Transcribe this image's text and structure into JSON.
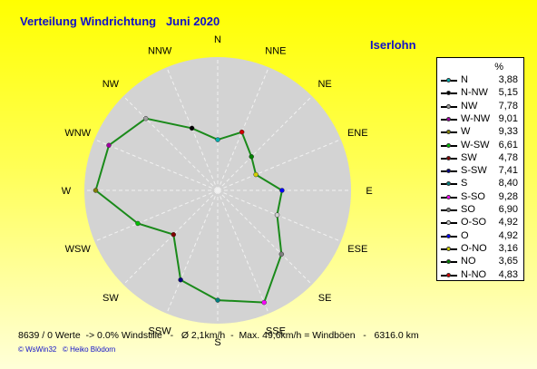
{
  "title": "Verteilung Windrichtung   Juni 2020",
  "location": "Iserlohn",
  "legend_unit": "%",
  "stats": "8639 / 0 Werte  -> 0.0% Windstille   -   Ø 2,1km/h  -  Max. 49,6km/h = Windböen   -   6316.0 km",
  "copyright": "© WsWin32   © Heiko Blödorn",
  "colors": {
    "line": "#1a8a1a",
    "disc": "#d3d3d3",
    "title": "#1010c8"
  },
  "chart_data": {
    "type": "radar",
    "directions": [
      "N",
      "NNE",
      "NE",
      "ENE",
      "E",
      "ESE",
      "SE",
      "SSE",
      "S",
      "SSW",
      "SW",
      "WSW",
      "W",
      "WNW",
      "NW",
      "NNW"
    ],
    "rmax": 9.33,
    "legend": [
      {
        "label": "N",
        "value": 3.88,
        "color": "#00b0b0"
      },
      {
        "label": "N-NW",
        "value": 5.15,
        "color": "#000000"
      },
      {
        "label": "NW",
        "value": 7.78,
        "color": "#a0a0a0"
      },
      {
        "label": "W-NW",
        "value": 9.01,
        "color": "#a000a0"
      },
      {
        "label": "W",
        "value": 9.33,
        "color": "#808000"
      },
      {
        "label": "W-SW",
        "value": 6.61,
        "color": "#00c000"
      },
      {
        "label": "SW",
        "value": 4.78,
        "color": "#800000"
      },
      {
        "label": "S-SW",
        "value": 7.41,
        "color": "#000080"
      },
      {
        "label": "S",
        "value": 8.4,
        "color": "#008080"
      },
      {
        "label": "S-SO",
        "value": 9.28,
        "color": "#ff00ff"
      },
      {
        "label": "SO",
        "value": 6.9,
        "color": "#808080"
      },
      {
        "label": "O-SO",
        "value": 4.92,
        "color": "#d0d0d0"
      },
      {
        "label": "O",
        "value": 4.92,
        "color": "#0000ff"
      },
      {
        "label": "O-NO",
        "value": 3.16,
        "color": "#d0d000"
      },
      {
        "label": "NO",
        "value": 3.65,
        "color": "#008000"
      },
      {
        "label": "N-NO",
        "value": 4.83,
        "color": "#d00000"
      }
    ],
    "values": {
      "N": 3.88,
      "NNE": 4.83,
      "NE": 3.65,
      "ENE": 3.16,
      "E": 4.92,
      "ESE": 4.92,
      "SE": 6.9,
      "SSE": 9.28,
      "S": 8.4,
      "SSW": 7.41,
      "SW": 4.78,
      "WSW": 6.61,
      "W": 9.33,
      "WNW": 9.01,
      "NW": 7.78,
      "NNW": 5.15
    }
  }
}
